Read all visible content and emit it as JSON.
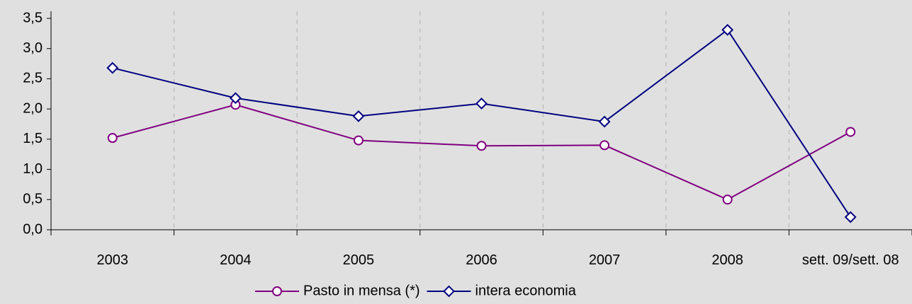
{
  "chart_data": {
    "type": "line",
    "categories": [
      "2003",
      "2004",
      "2005",
      "2006",
      "2007",
      "2008",
      "sett. 09/sett. 08"
    ],
    "series": [
      {
        "name": "Pasto in mensa (*)",
        "color": "#800080",
        "marker": "circle",
        "values": [
          1.52,
          2.07,
          1.48,
          1.39,
          1.4,
          0.5,
          1.62
        ]
      },
      {
        "name": "intera economia",
        "color": "#000080",
        "marker": "diamond",
        "values": [
          2.68,
          2.18,
          1.88,
          2.09,
          1.79,
          3.31,
          0.21
        ]
      }
    ],
    "ylim": [
      0,
      3.5
    ],
    "yticks": [
      {
        "value": 0,
        "label": "0,0"
      },
      {
        "value": 0.5,
        "label": "0,5"
      },
      {
        "value": 1,
        "label": "1,0"
      },
      {
        "value": 1.5,
        "label": "1,5"
      },
      {
        "value": 2,
        "label": "2,0"
      },
      {
        "value": 2.5,
        "label": "2,5"
      },
      {
        "value": 3,
        "label": "3,0"
      },
      {
        "value": 3.5,
        "label": "3,5"
      }
    ],
    "legend": "bottom"
  }
}
